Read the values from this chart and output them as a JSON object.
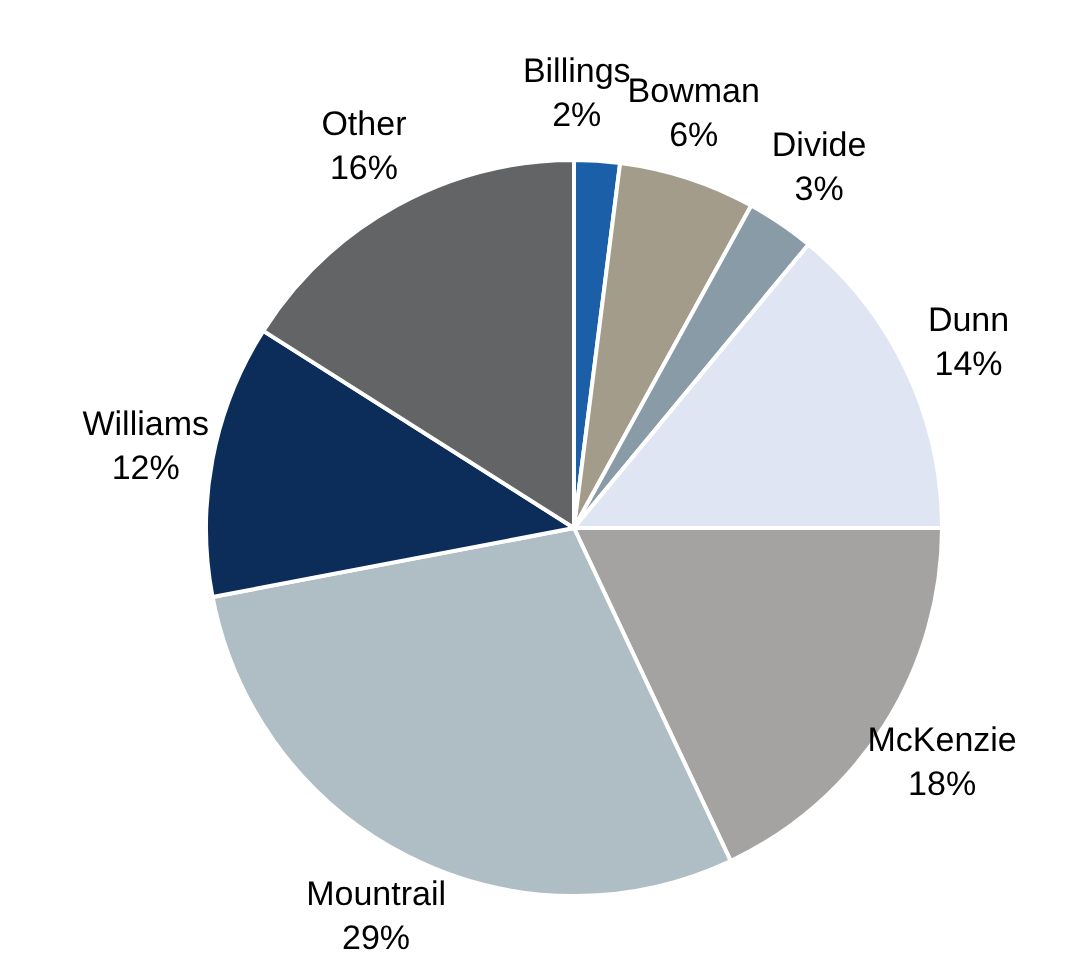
{
  "chart_data": {
    "type": "pie",
    "categories": [
      "Billings",
      "Bowman",
      "Divide",
      "Dunn",
      "McKenzie",
      "Mountrail",
      "Williams",
      "Other"
    ],
    "values": [
      2,
      6,
      3,
      14,
      18,
      29,
      12,
      16
    ],
    "value_labels": [
      "2%",
      "6%",
      "3%",
      "14%",
      "18%",
      "29%",
      "12%",
      "16%"
    ],
    "colors": [
      "#1a5fa8",
      "#a39c8a",
      "#8a9ba8",
      "#dfe5f2",
      "#a5a3a1",
      "#afbec5",
      "#0c2d5a",
      "#636466"
    ],
    "legend": false
  }
}
